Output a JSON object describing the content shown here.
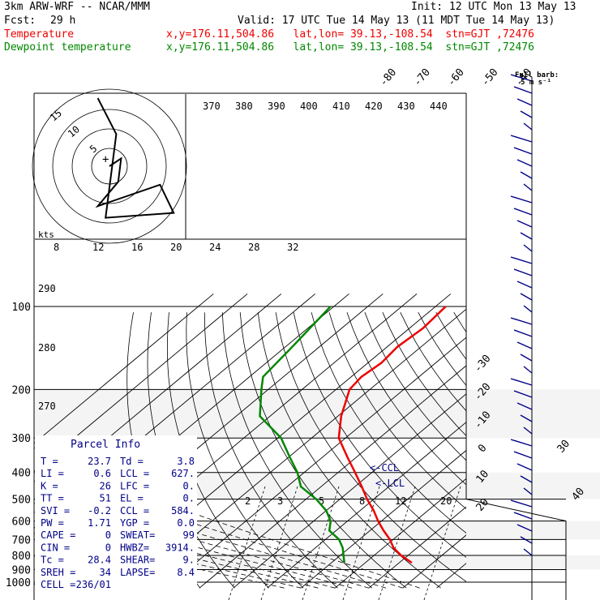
{
  "header": {
    "model": "3km ARW-WRF -- NCAR/MMM",
    "init": "Init: 12 UTC Mon 13 May 13",
    "fcst_label": "Fcst:",
    "fcst_value": "29 h",
    "valid": "Valid: 17 UTC Tue 14 May 13 (11 MDT Tue 14 May 13)",
    "temp_label": "Temperature",
    "temp_info": "x,y=176.11,504.86   lat,lon= 39.13,-108.54  stn=GJT ,72476",
    "dew_label": "Dewpoint temperature",
    "dew_info": "x,y=176.11,504.86   lat,lon= 39.13,-108.54  stn=GJT ,72476"
  },
  "colors": {
    "temperature": "#ee0000",
    "dewpoint": "#008800",
    "isotherm": "#000000",
    "barb": "#000088",
    "parcel_title": "#000088"
  },
  "barb_legend": {
    "line1": "Full barb:",
    "line2": "5 m s⁻¹"
  },
  "parcel": {
    "title": "Parcel Info",
    "rows": [
      [
        "T   =",
        "23.7",
        "Td  =",
        "3.8"
      ],
      [
        "LI  =",
        "0.6",
        "LCL =",
        "627."
      ],
      [
        "K   =",
        "26",
        "LFC =",
        "0."
      ],
      [
        "TT  =",
        "51",
        "EL  =",
        "0."
      ],
      [
        "SVI =",
        "-0.2",
        "CCL =",
        "584."
      ],
      [
        "PW  =",
        "1.71",
        "YGP =",
        "0.0"
      ],
      [
        "CAPE =",
        "0",
        "SWEAT=",
        "99"
      ],
      [
        "CIN  =",
        "0",
        "HWBZ=",
        "3914."
      ],
      [
        "Tc  =",
        "28.4",
        "SHEAR=",
        "9."
      ],
      [
        "SREH =",
        "34",
        "LAPSE=",
        "8.4"
      ],
      [
        "CELL =",
        "236/01",
        "",
        ""
      ]
    ]
  },
  "labels": {
    "ccl": "<-CCL",
    "lcl": "<-LCL",
    "hodo_units": "kts",
    "hodo_rings": [
      "5",
      "10",
      "15"
    ],
    "hodo_speed_ticks": [
      "8",
      "12",
      "16",
      "20",
      "24",
      "28",
      "32"
    ],
    "theta_ticks": [
      "370",
      "380",
      "390",
      "400",
      "410",
      "420",
      "430",
      "440"
    ],
    "theta_side": [
      "290",
      "280",
      "270"
    ],
    "mixing_ratio": [
      "2",
      "3",
      "5",
      "8",
      "12",
      "20"
    ]
  },
  "chart_data": {
    "type": "skew-t",
    "pressure_levels_hPa": [
      100,
      200,
      300,
      400,
      500,
      600,
      700,
      800,
      900,
      1000
    ],
    "isotherm_labels_C": [
      -80,
      -70,
      -60,
      -50,
      -40,
      -30,
      -20,
      -10,
      0,
      10,
      20,
      30,
      40
    ],
    "temperature": {
      "name": "Temperature",
      "points": [
        [
          100,
          -57
        ],
        [
          120,
          -56
        ],
        [
          140,
          -57
        ],
        [
          160,
          -56
        ],
        [
          180,
          -57
        ],
        [
          200,
          -56
        ],
        [
          250,
          -49
        ],
        [
          300,
          -42
        ],
        [
          350,
          -33
        ],
        [
          400,
          -25
        ],
        [
          450,
          -18
        ],
        [
          500,
          -12
        ],
        [
          550,
          -6
        ],
        [
          600,
          -1
        ],
        [
          650,
          4
        ],
        [
          700,
          9
        ],
        [
          750,
          13
        ],
        [
          800,
          18
        ],
        [
          850,
          23.7
        ]
      ]
    },
    "dewpoint": {
      "name": "Dewpoint temperature",
      "points": [
        [
          100,
          -91
        ],
        [
          140,
          -88
        ],
        [
          180,
          -86
        ],
        [
          200,
          -82
        ],
        [
          250,
          -73
        ],
        [
          300,
          -59
        ],
        [
          350,
          -50
        ],
        [
          400,
          -42
        ],
        [
          450,
          -36
        ],
        [
          500,
          -27
        ],
        [
          550,
          -20
        ],
        [
          600,
          -15
        ],
        [
          650,
          -12
        ],
        [
          700,
          -6
        ],
        [
          750,
          -2
        ],
        [
          800,
          1
        ],
        [
          850,
          3.8
        ]
      ]
    },
    "hodograph": [
      [
        0,
        0
      ],
      [
        1.2,
        -0.8
      ],
      [
        0.9,
        1.6
      ],
      [
        -1.2,
        4.1
      ],
      [
        5.2,
        1.9
      ],
      [
        6.6,
        4.8
      ],
      [
        -0.4,
        5.3
      ],
      [
        0.7,
        -3.3
      ],
      [
        -1.2,
        -7
      ]
    ]
  }
}
